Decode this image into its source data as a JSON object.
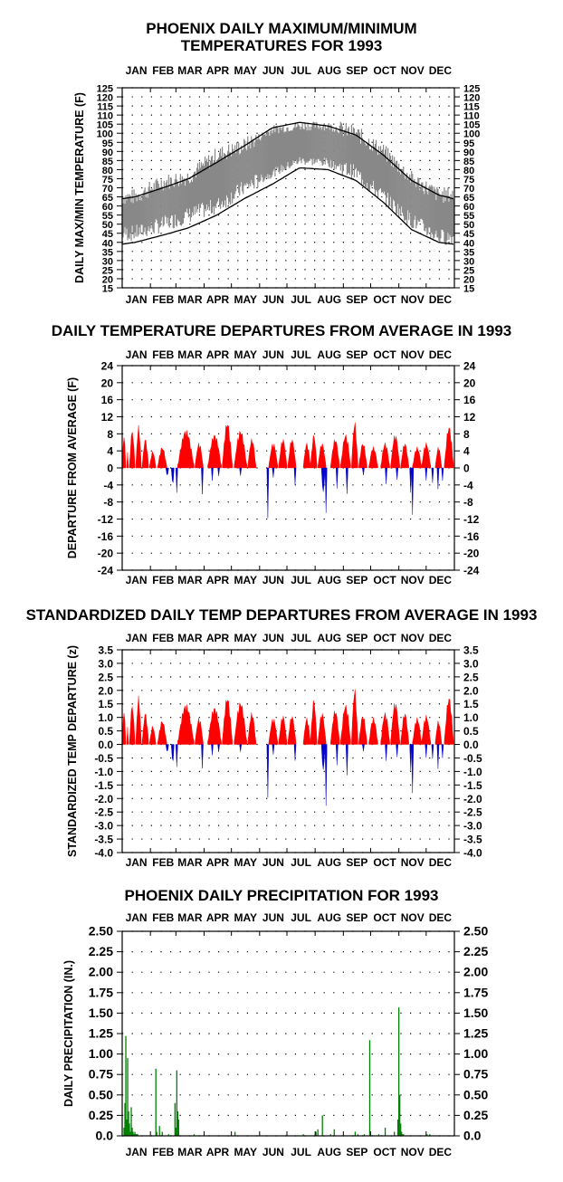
{
  "chart_data": [
    {
      "type": "area",
      "title": "PHOENIX DAILY MAXIMUM/MINIMUM TEMPERATURES FOR 1993",
      "title_lines": [
        "PHOENIX DAILY MAXIMUM/MINIMUM",
        "TEMPERATURES FOR 1993"
      ],
      "ylabel": "DAILY MAX/MIN TEMPERATURE (F)",
      "xlabel": "",
      "months": [
        "JAN",
        "FEB",
        "MAR",
        "APR",
        "MAY",
        "JUN",
        "JUL",
        "AUG",
        "SEP",
        "OCT",
        "NOV",
        "DEC"
      ],
      "ylim": [
        15,
        125
      ],
      "yticks": [
        "125",
        "120",
        "115",
        "110",
        "105",
        "100",
        "95",
        "90",
        "85",
        "80",
        "75",
        "70",
        "65",
        "60",
        "55",
        "50",
        "45",
        "40",
        "35",
        "30",
        "25",
        "20",
        "15"
      ],
      "grid": "dotted",
      "colors": {
        "band": "#888888",
        "normals": "#000000"
      },
      "series": [
        {
          "name": "",
          "kind": "daily high (monthly approx.)",
          "x": [
            15,
            46,
            74,
            105,
            135,
            166,
            196,
            227,
            258,
            288,
            319,
            349
          ],
          "values": [
            65,
            73,
            76,
            88,
            93,
            102,
            104,
            104,
            100,
            90,
            75,
            66
          ]
        },
        {
          "name": "",
          "kind": "daily low (monthly approx.)",
          "x": [
            15,
            46,
            74,
            105,
            135,
            166,
            196,
            227,
            258,
            288,
            319,
            349
          ],
          "values": [
            45,
            50,
            55,
            60,
            70,
            78,
            85,
            84,
            78,
            65,
            52,
            43
          ]
        },
        {
          "name": "",
          "kind": "normal high",
          "x": [
            1,
            15,
            46,
            74,
            105,
            135,
            166,
            196,
            227,
            258,
            288,
            319,
            349,
            365
          ],
          "values": [
            64,
            65,
            70,
            75,
            84,
            93,
            103,
            106,
            104,
            99,
            88,
            74,
            66,
            64
          ]
        },
        {
          "name": "",
          "kind": "normal low",
          "x": [
            1,
            15,
            46,
            74,
            105,
            135,
            166,
            196,
            227,
            258,
            288,
            319,
            349,
            365
          ],
          "values": [
            39,
            40,
            44,
            48,
            55,
            64,
            72,
            81,
            80,
            74,
            62,
            47,
            40,
            39
          ]
        }
      ]
    },
    {
      "type": "bar",
      "title": "DAILY TEMPERATURE DEPARTURES FROM AVERAGE IN 1993",
      "ylabel": "DEPARTURE FROM AVERAGE (F)",
      "xlabel": "",
      "months": [
        "JAN",
        "FEB",
        "MAR",
        "APR",
        "MAY",
        "JUN",
        "JUL",
        "AUG",
        "SEP",
        "OCT",
        "NOV",
        "DEC"
      ],
      "ylim": [
        -24,
        24
      ],
      "yticks": [
        "24",
        "20",
        "16",
        "12",
        "8",
        "4",
        "0",
        "-4",
        "-8",
        "-12",
        "-16",
        "-20",
        "-24"
      ],
      "grid": "dotted",
      "colors": {
        "positive": "#ff0000",
        "negative": "#0000cc"
      },
      "events_positive": [
        [
          1,
          5,
          8
        ],
        [
          6,
          8,
          4
        ],
        [
          9,
          15,
          9
        ],
        [
          16,
          22,
          10
        ],
        [
          23,
          30,
          7
        ],
        [
          31,
          38,
          4
        ],
        [
          40,
          50,
          5
        ],
        [
          62,
          80,
          9
        ],
        [
          81,
          90,
          6
        ],
        [
          95,
          110,
          8
        ],
        [
          111,
          122,
          11
        ],
        [
          124,
          138,
          9
        ],
        [
          139,
          148,
          7
        ],
        [
          162,
          172,
          6
        ],
        [
          173,
          182,
          7
        ],
        [
          183,
          192,
          7
        ],
        [
          200,
          208,
          6
        ],
        [
          208,
          215,
          8
        ],
        [
          216,
          225,
          6
        ],
        [
          230,
          240,
          7
        ],
        [
          241,
          252,
          8
        ],
        [
          253,
          260,
          11
        ],
        [
          261,
          270,
          6
        ],
        [
          272,
          282,
          5
        ],
        [
          285,
          295,
          6
        ],
        [
          296,
          306,
          8
        ],
        [
          307,
          316,
          6
        ],
        [
          320,
          330,
          5
        ],
        [
          330,
          340,
          6
        ],
        [
          345,
          352,
          5
        ],
        [
          355,
          365,
          10
        ]
      ],
      "events_negative": [
        [
          49,
          52,
          -2
        ],
        [
          55,
          58,
          -4
        ],
        [
          60,
          62,
          -7
        ],
        [
          88,
          90,
          -7
        ],
        [
          99,
          101,
          -3
        ],
        [
          106,
          108,
          -2
        ],
        [
          130,
          132,
          -2
        ],
        [
          160,
          162,
          -12
        ],
        [
          166,
          168,
          -3
        ],
        [
          190,
          192,
          -4
        ],
        [
          220,
          224,
          -6
        ],
        [
          224,
          226,
          -13
        ],
        [
          236,
          238,
          -5
        ],
        [
          247,
          249,
          -8
        ],
        [
          265,
          267,
          -2
        ],
        [
          290,
          292,
          -5
        ],
        [
          302,
          304,
          -3
        ],
        [
          317,
          319,
          -6
        ],
        [
          319,
          321,
          -11
        ],
        [
          334,
          336,
          -3
        ],
        [
          341,
          343,
          -4
        ],
        [
          347,
          349,
          -5
        ],
        [
          352,
          354,
          -3
        ]
      ]
    },
    {
      "type": "bar",
      "title": "STANDARDIZED DAILY TEMP DEPARTURES FROM AVERAGE IN 1993",
      "ylabel": "STANDARDIZED TEMP DEPARTURE (z)",
      "xlabel": "",
      "months": [
        "JAN",
        "FEB",
        "MAR",
        "APR",
        "MAY",
        "JUN",
        "JUL",
        "AUG",
        "SEP",
        "OCT",
        "NOV",
        "DEC"
      ],
      "ylim": [
        -4.0,
        3.5
      ],
      "yticks": [
        "3.5",
        "3.0",
        "2.5",
        "2.0",
        "1.5",
        "1.0",
        "0.5",
        "0.0",
        "-0.5",
        "-1.0",
        "-1.5",
        "-2.0",
        "-2.5",
        "-3.0",
        "-3.5",
        "-4.0"
      ],
      "grid": "dotted",
      "colors": {
        "positive": "#ff0000",
        "negative": "#0000cc"
      },
      "events_positive": [
        [
          1,
          5,
          1.3
        ],
        [
          6,
          8,
          0.7
        ],
        [
          9,
          15,
          1.5
        ],
        [
          16,
          22,
          1.8
        ],
        [
          23,
          30,
          1.2
        ],
        [
          31,
          38,
          0.7
        ],
        [
          40,
          50,
          0.9
        ],
        [
          62,
          80,
          1.5
        ],
        [
          81,
          90,
          1.0
        ],
        [
          95,
          110,
          1.4
        ],
        [
          111,
          122,
          1.8
        ],
        [
          124,
          138,
          1.6
        ],
        [
          139,
          148,
          1.2
        ],
        [
          162,
          172,
          1.0
        ],
        [
          173,
          182,
          1.1
        ],
        [
          183,
          192,
          1.1
        ],
        [
          200,
          208,
          1.0
        ],
        [
          208,
          215,
          1.7
        ],
        [
          216,
          225,
          1.2
        ],
        [
          230,
          240,
          1.3
        ],
        [
          241,
          252,
          1.5
        ],
        [
          253,
          260,
          2.1
        ],
        [
          261,
          270,
          1.1
        ],
        [
          272,
          282,
          1.0
        ],
        [
          285,
          295,
          1.2
        ],
        [
          296,
          306,
          1.6
        ],
        [
          307,
          316,
          1.2
        ],
        [
          320,
          330,
          1.0
        ],
        [
          330,
          340,
          1.1
        ],
        [
          345,
          352,
          0.9
        ],
        [
          355,
          365,
          1.8
        ]
      ],
      "events_negative": [
        [
          49,
          52,
          -0.3
        ],
        [
          55,
          58,
          -0.7
        ],
        [
          60,
          62,
          -1.0
        ],
        [
          88,
          90,
          -1.0
        ],
        [
          99,
          101,
          -0.4
        ],
        [
          106,
          108,
          -0.3
        ],
        [
          130,
          132,
          -0.3
        ],
        [
          160,
          162,
          -2.0
        ],
        [
          166,
          168,
          -0.5
        ],
        [
          190,
          192,
          -0.6
        ],
        [
          220,
          224,
          -1.0
        ],
        [
          224,
          226,
          -2.8
        ],
        [
          236,
          238,
          -0.8
        ],
        [
          247,
          249,
          -1.5
        ],
        [
          265,
          267,
          -0.3
        ],
        [
          290,
          292,
          -0.8
        ],
        [
          302,
          304,
          -0.5
        ],
        [
          317,
          319,
          -1.0
        ],
        [
          319,
          321,
          -1.8
        ],
        [
          334,
          336,
          -0.5
        ],
        [
          341,
          343,
          -0.6
        ],
        [
          347,
          349,
          -0.9
        ],
        [
          352,
          354,
          -0.5
        ]
      ]
    },
    {
      "type": "bar",
      "title": "PHOENIX DAILY PRECIPITATION FOR 1993",
      "ylabel": "DAILY PRECIPITATION (IN.)",
      "xlabel": "",
      "months": [
        "JAN",
        "FEB",
        "MAR",
        "APR",
        "MAY",
        "JUN",
        "JUL",
        "AUG",
        "SEP",
        "OCT",
        "NOV",
        "DEC"
      ],
      "ylim": [
        0,
        2.5
      ],
      "yticks": [
        "2.50",
        "2.25",
        "2.00",
        "1.75",
        "1.50",
        "1.25",
        "1.00",
        "0.75",
        "0.50",
        "0.25",
        "0.0"
      ],
      "grid": "dotted",
      "colors": {
        "bars": "#008000"
      },
      "days": [
        3,
        4,
        5,
        6,
        7,
        8,
        9,
        10,
        11,
        12,
        13,
        14,
        15,
        16,
        17,
        18,
        38,
        39,
        42,
        45,
        52,
        59,
        60,
        61,
        62,
        63,
        80,
        125,
        200,
        214,
        216,
        221,
        230,
        234,
        257,
        260,
        267,
        273,
        283,
        290,
        300,
        304,
        305,
        306,
        307,
        308,
        309,
        310,
        336,
        339
      ],
      "values": [
        0.1,
        0.4,
        1.22,
        0.2,
        0.95,
        0.3,
        0.15,
        0.05,
        0.35,
        0.1,
        0.05,
        0.02,
        0.05,
        0.02,
        0.02,
        0.02,
        0.82,
        0.05,
        0.12,
        0.05,
        0.02,
        0.4,
        0.1,
        0.8,
        0.3,
        0.2,
        0.02,
        0.05,
        0.02,
        0.05,
        0.08,
        0.25,
        0.02,
        0.08,
        0.05,
        0.02,
        0.02,
        1.17,
        0.02,
        0.1,
        0.05,
        0.2,
        1.57,
        0.5,
        0.15,
        0.05,
        0.02,
        0.02,
        0.02,
        0.02
      ]
    }
  ]
}
